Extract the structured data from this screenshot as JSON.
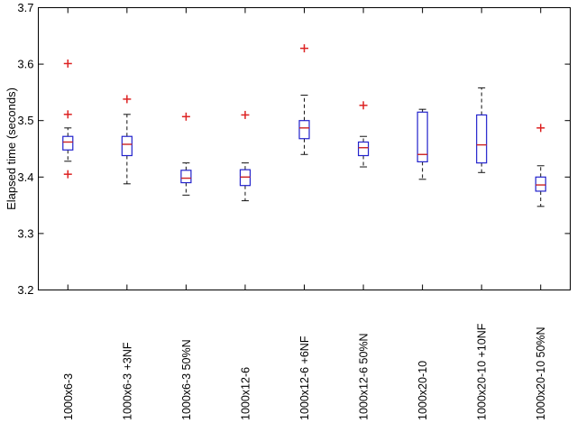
{
  "figure": {
    "background": "#ffffff"
  },
  "chart_data": {
    "type": "boxplot",
    "title": "",
    "xlabel": "",
    "ylabel": "Elapsed time (seconds)",
    "ylim": [
      3.2,
      3.7
    ],
    "yticks": [
      3.2,
      3.3,
      3.4,
      3.5,
      3.6,
      3.7
    ],
    "grid": false,
    "legend_position": "none",
    "categories": [
      "1000x6-3",
      "1000x6-3 +3NF",
      "1000x6-3 50%N",
      "1000x12-6",
      "1000x12-6 +6NF",
      "1000x12-6 50%N",
      "1000x20-10",
      "1000x20-10 +10NF",
      "1000x20-10 50%N"
    ],
    "boxes": [
      {
        "q1": 3.448,
        "median": 3.462,
        "q3": 3.472,
        "whisker_low": 3.428,
        "whisker_high": 3.487,
        "outliers": [
          3.405,
          3.511,
          3.601
        ]
      },
      {
        "q1": 3.438,
        "median": 3.458,
        "q3": 3.472,
        "whisker_low": 3.388,
        "whisker_high": 3.511,
        "outliers": [
          3.538
        ]
      },
      {
        "q1": 3.39,
        "median": 3.398,
        "q3": 3.412,
        "whisker_low": 3.368,
        "whisker_high": 3.425,
        "outliers": [
          3.507
        ]
      },
      {
        "q1": 3.385,
        "median": 3.4,
        "q3": 3.413,
        "whisker_low": 3.358,
        "whisker_high": 3.425,
        "outliers": [
          3.51
        ]
      },
      {
        "q1": 3.468,
        "median": 3.487,
        "q3": 3.5,
        "whisker_low": 3.44,
        "whisker_high": 3.545,
        "outliers": [
          3.628
        ]
      },
      {
        "q1": 3.438,
        "median": 3.452,
        "q3": 3.462,
        "whisker_low": 3.418,
        "whisker_high": 3.472,
        "outliers": [
          3.527
        ]
      },
      {
        "q1": 3.427,
        "median": 3.44,
        "q3": 3.515,
        "whisker_low": 3.396,
        "whisker_high": 3.52,
        "outliers": []
      },
      {
        "q1": 3.425,
        "median": 3.457,
        "q3": 3.51,
        "whisker_low": 3.408,
        "whisker_high": 3.558,
        "outliers": []
      },
      {
        "q1": 3.375,
        "median": 3.386,
        "q3": 3.4,
        "whisker_low": 3.348,
        "whisker_high": 3.42,
        "outliers": [
          3.487
        ]
      }
    ],
    "colors": {
      "box": "#2222cc",
      "median": "#cc2222",
      "whisker": "#111111",
      "cap": "#111111",
      "outlier": "#dd2222",
      "axis": "#000000"
    }
  }
}
